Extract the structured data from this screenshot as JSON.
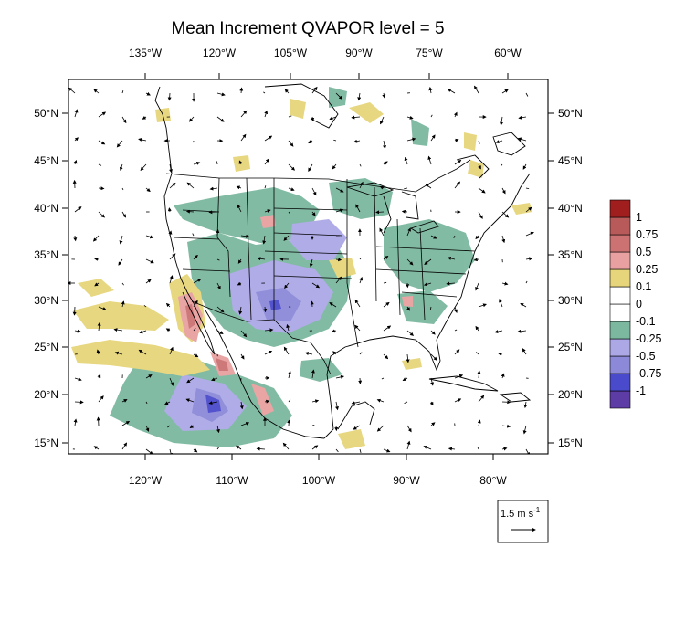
{
  "title": "Mean Increment QVAPOR level = 5",
  "top_lon_labels": [
    "135°W",
    "120°W",
    "105°W",
    "90°W",
    "75°W",
    "60°W"
  ],
  "bottom_lon_labels": [
    "120°W",
    "110°W",
    "100°W",
    "90°W",
    "80°W"
  ],
  "left_lat_labels": [
    "50°N",
    "45°N",
    "40°N",
    "35°N",
    "30°N",
    "25°N",
    "20°N",
    "15°N"
  ],
  "right_lat_labels": [
    "50°N",
    "45°N",
    "40°N",
    "35°N",
    "30°N",
    "25°N",
    "20°N",
    "15°N"
  ],
  "colorbar": {
    "colors": [
      "#5e3ca6",
      "#4a4acc",
      "#8c8ad8",
      "#aca8e6",
      "#7cb8a0",
      "#ffffff",
      "#ffffff",
      "#e6d57a",
      "#e8a0a0",
      "#cc7272",
      "#b85a5a",
      "#a01e1e"
    ],
    "labels": [
      "-1",
      "-0.75",
      "-0.5",
      "-0.25",
      "-0.1",
      "0",
      "0.1",
      "0.25",
      "0.5",
      "0.75",
      "1"
    ]
  },
  "reference_vector": {
    "value": "1.5",
    "unit": "m s",
    "exponent": "-1"
  }
}
